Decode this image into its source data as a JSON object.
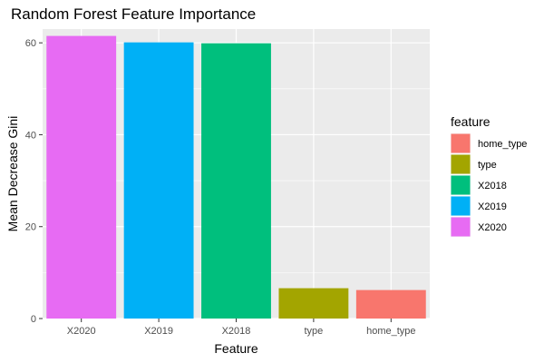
{
  "chart_data": {
    "type": "bar",
    "title": "Random Forest Feature Importance",
    "xlabel": "Feature",
    "ylabel": "Mean Decrease Gini",
    "categories": [
      "X2020",
      "X2019",
      "X2018",
      "type",
      "home_type"
    ],
    "values": [
      61.5,
      60.1,
      59.9,
      6.6,
      6.2
    ],
    "colors": {
      "X2020": "#E76BF3",
      "X2019": "#00B0F6",
      "X2018": "#00BF7D",
      "type": "#A3A500",
      "home_type": "#F8766D"
    },
    "ylim": [
      0,
      63
    ],
    "yticks": [
      0,
      20,
      40,
      60
    ],
    "grid": true,
    "panel_background": "#EBEBEB",
    "legend": {
      "title": "feature",
      "position": "right",
      "entries": [
        "home_type",
        "type",
        "X2018",
        "X2019",
        "X2020"
      ]
    }
  }
}
